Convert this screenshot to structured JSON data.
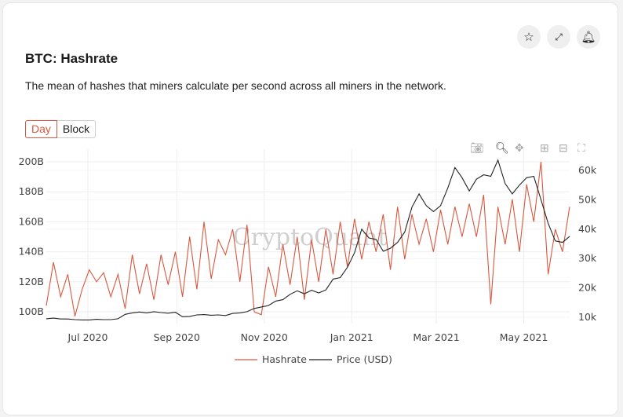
{
  "header": {
    "title": "BTC: Hashrate",
    "description": "The mean of hashes that miners calculate per second across all miners in the network.",
    "icons": [
      "star-icon",
      "expand-icon",
      "bell-icon"
    ]
  },
  "toggle": {
    "options": [
      "Day",
      "Block"
    ],
    "selected": "Day"
  },
  "modebar": [
    "camera-icon",
    "zoom-icon",
    "pan-icon",
    "zoom-in-icon",
    "zoom-out-icon",
    "autoscale-icon"
  ],
  "watermark": "CryptoQuant",
  "chart_data": {
    "type": "line",
    "x": [
      "2020-06-02",
      "2020-06-07",
      "2020-06-12",
      "2020-06-17",
      "2020-06-22",
      "2020-06-27",
      "2020-07-02",
      "2020-07-07",
      "2020-07-12",
      "2020-07-17",
      "2020-07-22",
      "2020-07-27",
      "2020-08-01",
      "2020-08-06",
      "2020-08-11",
      "2020-08-16",
      "2020-08-21",
      "2020-08-26",
      "2020-08-31",
      "2020-09-05",
      "2020-09-10",
      "2020-09-15",
      "2020-09-20",
      "2020-09-25",
      "2020-09-30",
      "2020-10-05",
      "2020-10-10",
      "2020-10-15",
      "2020-10-20",
      "2020-10-25",
      "2020-10-30",
      "2020-11-04",
      "2020-11-09",
      "2020-11-14",
      "2020-11-19",
      "2020-11-24",
      "2020-11-29",
      "2020-12-04",
      "2020-12-09",
      "2020-12-14",
      "2020-12-19",
      "2020-12-24",
      "2020-12-29",
      "2021-01-03",
      "2021-01-08",
      "2021-01-13",
      "2021-01-18",
      "2021-01-23",
      "2021-01-28",
      "2021-02-02",
      "2021-02-07",
      "2021-02-12",
      "2021-02-17",
      "2021-02-22",
      "2021-02-27",
      "2021-03-04",
      "2021-03-09",
      "2021-03-14",
      "2021-03-19",
      "2021-03-24",
      "2021-03-29",
      "2021-04-03",
      "2021-04-08",
      "2021-04-13",
      "2021-04-18",
      "2021-04-23",
      "2021-04-28",
      "2021-05-03",
      "2021-05-08",
      "2021-05-13",
      "2021-05-18",
      "2021-05-23",
      "2021-05-28",
      "2021-06-02"
    ],
    "series": [
      {
        "name": "Hashrate",
        "axis": "left",
        "color": "#d9573f",
        "values": [
          104,
          133,
          110,
          125,
          97,
          115,
          128,
          120,
          126,
          110,
          125,
          102,
          138,
          112,
          132,
          108,
          138,
          118,
          140,
          110,
          150,
          115,
          160,
          122,
          148,
          138,
          155,
          120,
          158,
          100,
          98,
          130,
          110,
          145,
          118,
          150,
          108,
          148,
          120,
          155,
          125,
          160,
          130,
          162,
          135,
          160,
          140,
          165,
          128,
          170,
          135,
          165,
          145,
          162,
          140,
          168,
          145,
          170,
          150,
          172,
          150,
          178,
          105,
          170,
          145,
          175,
          140,
          185,
          160,
          200,
          125,
          155,
          140,
          170
        ]
      },
      {
        "name": "Price (USD)",
        "axis": "right",
        "color": "#222222",
        "values": [
          9.5,
          9.7,
          9.4,
          9.4,
          9.2,
          9.1,
          9.1,
          9.3,
          9.2,
          9.2,
          9.5,
          11.0,
          11.5,
          11.8,
          11.5,
          11.9,
          11.6,
          11.4,
          11.7,
          10.2,
          10.3,
          10.8,
          10.9,
          10.7,
          10.8,
          10.6,
          11.3,
          11.5,
          11.9,
          13.0,
          13.5,
          14.0,
          15.5,
          16.0,
          17.8,
          19.0,
          18.0,
          19.2,
          18.3,
          19.3,
          23.0,
          23.5,
          27.0,
          32.0,
          40.0,
          37.0,
          36.5,
          32.5,
          33.5,
          35.5,
          39.0,
          47.5,
          52.0,
          48.0,
          46.0,
          48.0,
          54.0,
          61.0,
          57.5,
          53.0,
          57.0,
          58.5,
          58.0,
          63.5,
          55.5,
          52.0,
          55.0,
          57.5,
          58.0,
          50.0,
          42.0,
          36.0,
          35.5,
          37.5
        ]
      }
    ],
    "x_ticks": [
      [
        "2020-07-01",
        "Jul 2020"
      ],
      [
        "2020-09-01",
        "Sep 2020"
      ],
      [
        "2020-11-01",
        "Nov 2020"
      ],
      [
        "2021-01-01",
        "Jan 2021"
      ],
      [
        "2021-03-01",
        "Mar 2021"
      ],
      [
        "2021-05-01",
        "May 2021"
      ]
    ],
    "y_left_ticks": [
      "100B",
      "120B",
      "140B",
      "160B",
      "180B",
      "200B"
    ],
    "y_left_range": [
      95,
      202
    ],
    "y_right_ticks": [
      "10k",
      "20k",
      "30k",
      "40k",
      "50k",
      "60k"
    ],
    "y_right_range": [
      8,
      65
    ],
    "grid": true,
    "legend": "bottom-center"
  }
}
